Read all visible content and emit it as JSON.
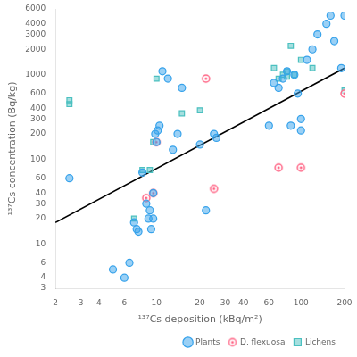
{
  "chart_data": {
    "type": "scatter",
    "xlabel": "¹³⁷Cs deposition (kBq/m²)",
    "ylabel": "¹³⁷Cs concentration (Bq/kg)",
    "log": true,
    "grid": false,
    "legend": "lower right",
    "xlim": [
      2,
      200
    ],
    "ylim": [
      3,
      6000
    ],
    "xticks": [
      2,
      3,
      4,
      6,
      10,
      20,
      30,
      40,
      60,
      100,
      200
    ],
    "yticks": [
      3,
      4,
      6,
      10,
      20,
      30,
      40,
      60,
      100,
      200,
      300,
      400,
      600,
      1000,
      2000,
      3000,
      4000,
      6000
    ],
    "series": [
      {
        "type": "line",
        "color": "#000000",
        "line_style": "solid",
        "x": [
          2,
          200
        ],
        "y": [
          18,
          1200
        ]
      },
      {
        "name": "Plants",
        "marker": "circle",
        "x": [
          2.5,
          5.0,
          6.0,
          6.5,
          7.0,
          7.3,
          7.5,
          8.0,
          8.5,
          8.8,
          9.0,
          9.2,
          9.5,
          9.5,
          9.8,
          10.0,
          10.2,
          10.5,
          11.0,
          12.0,
          13.0,
          14.0,
          15.0,
          20.0,
          22.0,
          25.0,
          26.0,
          60.0,
          65.0,
          70.0,
          75.0,
          80.0,
          85.0,
          90.0,
          95.0,
          100.0,
          100.0,
          110.0,
          120.0,
          130.0,
          150.0,
          160.0,
          170.0,
          190.0,
          200.0
        ],
        "y": [
          60.0,
          5.0,
          4.0,
          6.0,
          18.0,
          15.0,
          14.0,
          70.0,
          30.0,
          20.0,
          25.0,
          15.0,
          20.0,
          40.0,
          200.0,
          160.0,
          220.0,
          250.0,
          1100.0,
          900.0,
          130.0,
          200.0,
          700.0,
          150.0,
          25.0,
          200.0,
          180.0,
          250.0,
          800.0,
          700.0,
          900.0,
          1100.0,
          250.0,
          1000.0,
          600.0,
          300.0,
          220.0,
          1500.0,
          2000.0,
          3000.0,
          4000.0,
          5000.0,
          2500.0,
          1200.0,
          5000.0
        ]
      },
      {
        "name": "D. flexuosa",
        "marker": "circle_dot",
        "x": [
          8.5,
          9.5,
          10.0,
          22.0,
          25.0,
          70.0,
          100.0,
          200.0
        ],
        "y": [
          35.0,
          40.0,
          160.0,
          900.0,
          45.0,
          80.0,
          80.0,
          600.0
        ]
      },
      {
        "name": "Lichens",
        "marker": "square",
        "x": [
          2.5,
          2.5,
          7.0,
          8.0,
          9.0,
          9.5,
          10.0,
          15.0,
          20.0,
          65.0,
          70.0,
          75.0,
          80.0,
          80.0,
          85.0,
          90.0,
          100.0,
          120.0,
          200.0
        ],
        "y": [
          500.0,
          450.0,
          20.0,
          75.0,
          75.0,
          160.0,
          900.0,
          350.0,
          380.0,
          1200.0,
          900.0,
          1000.0,
          1100.0,
          950.0,
          2200.0,
          1000.0,
          1500.0,
          1200.0,
          650.0
        ]
      }
    ]
  }
}
